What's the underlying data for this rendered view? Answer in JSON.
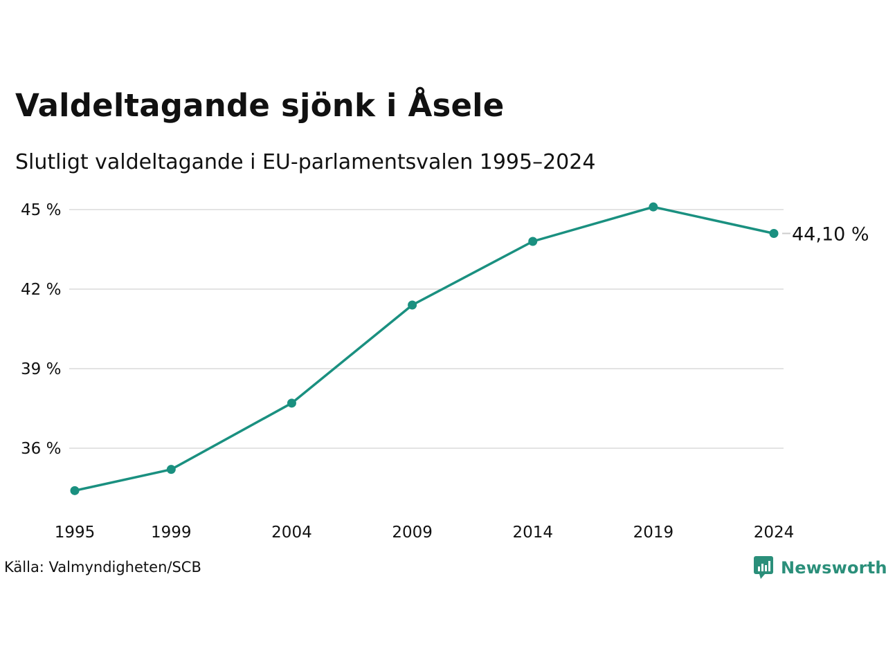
{
  "header": {
    "title": "Valdeltagande sjönk i Åsele",
    "subtitle": "Slutligt valdeltagande i EU-parlamentsvalen 1995–2024"
  },
  "footer": {
    "source": "Källa: Valmyndigheten/SCB",
    "brand": "Newsworthy"
  },
  "colors": {
    "line": "#1a9080",
    "grid": "#e3e3e3",
    "brand": "#2b8f7a"
  },
  "chart_data": {
    "type": "line",
    "categories": [
      "1995",
      "1999",
      "2004",
      "2009",
      "2014",
      "2019",
      "2024"
    ],
    "series": [
      {
        "values": [
          34.4,
          35.2,
          37.7,
          41.4,
          43.8,
          45.1,
          44.1
        ]
      }
    ],
    "yticks": [
      36,
      39,
      42,
      45
    ],
    "ytick_labels": [
      "36 %",
      "39 %",
      "42 %",
      "45 %"
    ],
    "ylim": [
      33.5,
      45.5
    ],
    "end_label": "44,10 %",
    "grid": true,
    "legend": "none"
  }
}
